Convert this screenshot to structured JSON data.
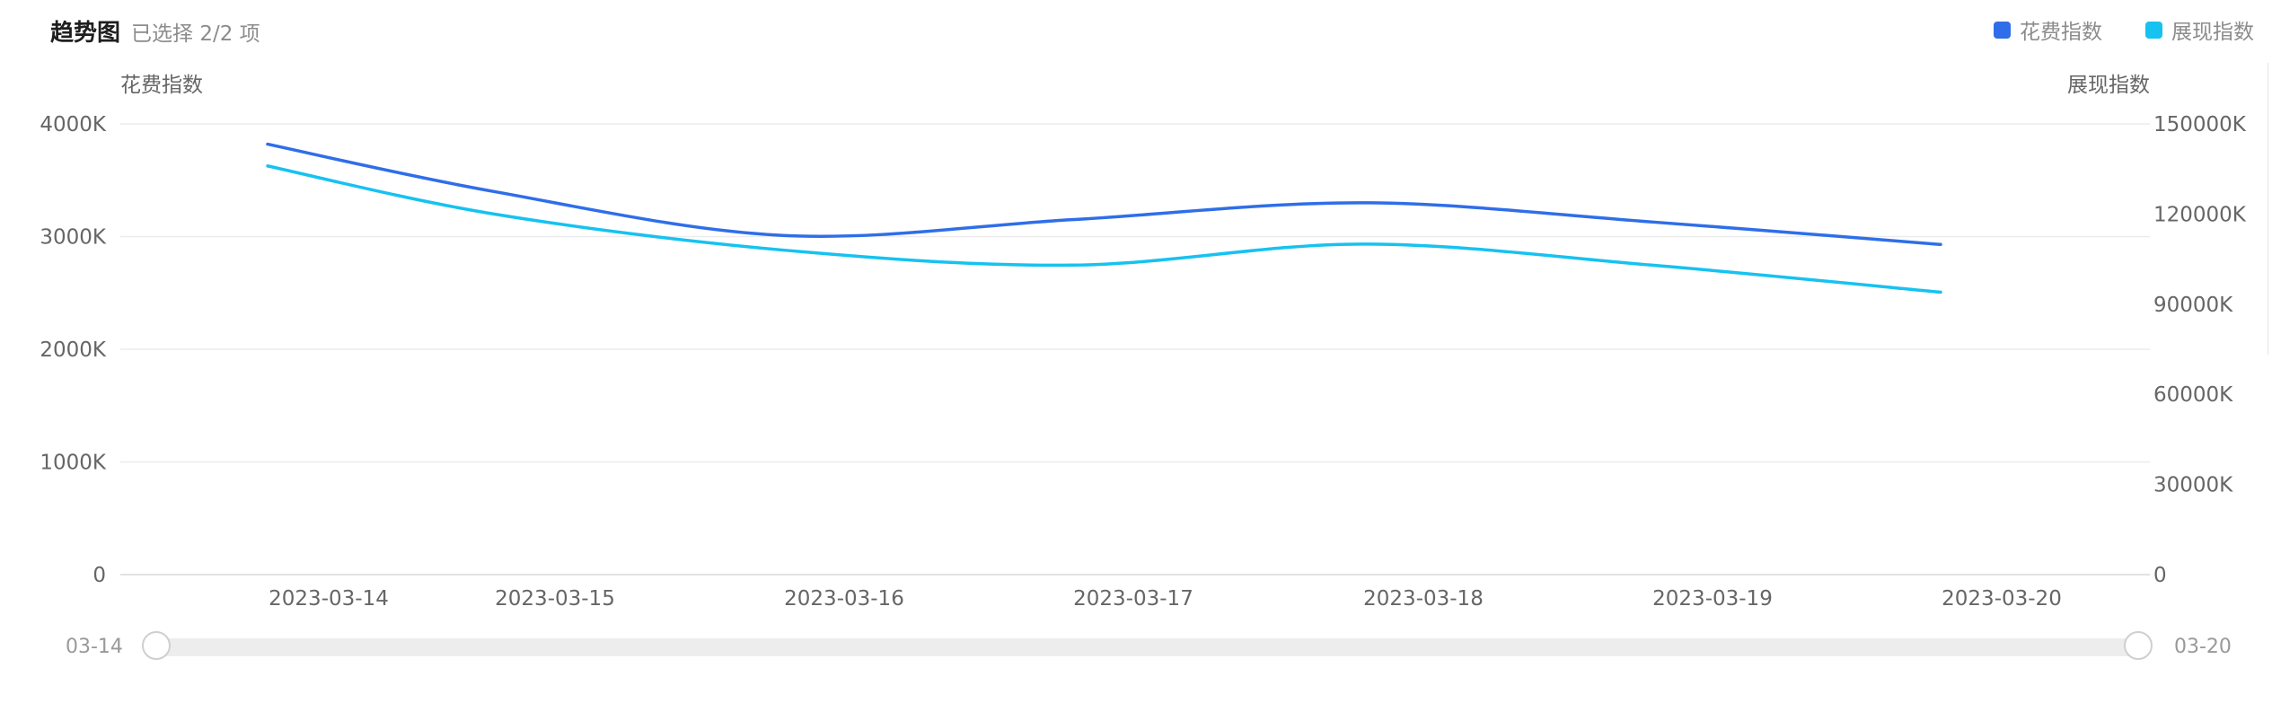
{
  "header": {
    "title": "趋势图",
    "subtitle": "已选择 2/2 项"
  },
  "legend": [
    {
      "label": "花费指数",
      "color": "#2f6ee8"
    },
    {
      "label": "展现指数",
      "color": "#16c2f0"
    }
  ],
  "slider": {
    "start_label": "03-14",
    "end_label": "03-20"
  },
  "chart_data": {
    "type": "line",
    "x": [
      "2023-03-14",
      "2023-03-15",
      "2023-03-16",
      "2023-03-17",
      "2023-03-18",
      "2023-03-19",
      "2023-03-20"
    ],
    "xlabel": "",
    "y_left": {
      "label": "花费指数",
      "ylim": [
        0,
        4000
      ],
      "ticks": [
        0,
        1000,
        2000,
        3000,
        4000
      ],
      "tick_labels": [
        "0",
        "1000K",
        "2000K",
        "3000K",
        "4000K"
      ]
    },
    "y_right": {
      "label": "展现指数",
      "ylim": [
        0,
        150000
      ],
      "ticks": [
        0,
        30000,
        60000,
        90000,
        120000,
        150000
      ],
      "tick_labels": [
        "0",
        "30000K",
        "60000K",
        "90000K",
        "120000K",
        "150000K"
      ]
    },
    "series": [
      {
        "name": "花费指数",
        "axis": "left",
        "color": "#2f6ee8",
        "values": [
          3820,
          3400,
          3010,
          3150,
          3300,
          3130,
          2930
        ]
      },
      {
        "name": "展现指数",
        "axis": "right",
        "color": "#16c2f0",
        "values": [
          136000,
          120000,
          108000,
          103000,
          110000,
          103000,
          94000
        ]
      }
    ],
    "grid": true,
    "legend_position": "top-right"
  }
}
